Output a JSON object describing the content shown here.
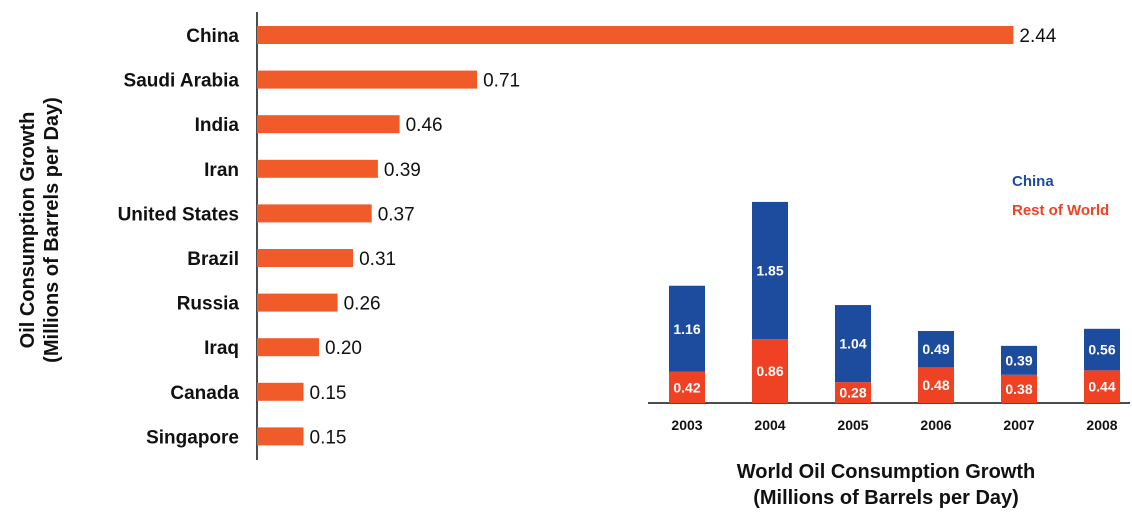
{
  "chart_data": [
    {
      "type": "bar",
      "orientation": "horizontal",
      "ylabel_line1": "Oil Consumption Growth",
      "ylabel_line2": "(Millions of Barrels per Day)",
      "categories": [
        "China",
        "Saudi Arabia",
        "India",
        "Iran",
        "United States",
        "Brazil",
        "Russia",
        "Iraq",
        "Canada",
        "Singapore"
      ],
      "values": [
        2.44,
        0.71,
        0.46,
        0.39,
        0.37,
        0.31,
        0.26,
        0.2,
        0.15,
        0.15
      ],
      "value_labels": [
        "2.44",
        "0.71",
        "0.46",
        "0.39",
        "0.37",
        "0.31",
        "0.26",
        "0.20",
        "0.15",
        "0.15"
      ],
      "color": "#f15a29",
      "grid": false
    },
    {
      "type": "bar",
      "stacked": true,
      "title_line1": "World Oil Consumption Growth",
      "title_line2": "(Millions of Barrels per Day)",
      "categories": [
        "2003",
        "2004",
        "2005",
        "2006",
        "2007",
        "2008"
      ],
      "series": [
        {
          "name": "Rest of World",
          "color": "#ef4123",
          "values": [
            0.42,
            0.86,
            0.28,
            0.48,
            0.38,
            0.44
          ],
          "labels": [
            "0.42",
            "0.86",
            "0.28",
            "0.48",
            "0.38",
            "0.44"
          ]
        },
        {
          "name": "China",
          "color": "#1d4b9e",
          "values": [
            1.16,
            1.85,
            1.04,
            0.49,
            0.39,
            0.56
          ],
          "labels": [
            "1.16",
            "1.85",
            "1.04",
            "0.49",
            "0.39",
            "0.56"
          ]
        }
      ],
      "legend_position": "top-right",
      "grid": false
    }
  ]
}
